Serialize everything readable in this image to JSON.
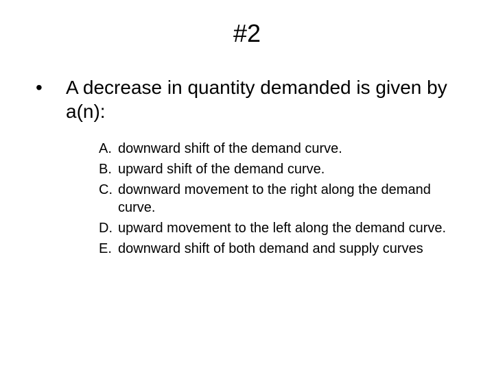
{
  "colors": {
    "background": "#ffffff",
    "text": "#000000"
  },
  "typography": {
    "font_family": "Arial",
    "title_fontsize": 36,
    "question_fontsize": 28,
    "option_fontsize": 20
  },
  "slide": {
    "title": "#2",
    "bullet_glyph": "•",
    "question": "A decrease in quantity demanded is given by a(n):",
    "options": [
      {
        "label": "A.",
        "text": "downward shift of the demand curve."
      },
      {
        "label": "B.",
        "text": "upward shift of the demand curve."
      },
      {
        "label": "C.",
        "text": "downward movement to the right along the demand curve."
      },
      {
        "label": "D.",
        "text": "upward movement to the left along the demand curve."
      },
      {
        "label": "E.",
        "text": "downward shift of both demand and supply curves"
      }
    ]
  }
}
